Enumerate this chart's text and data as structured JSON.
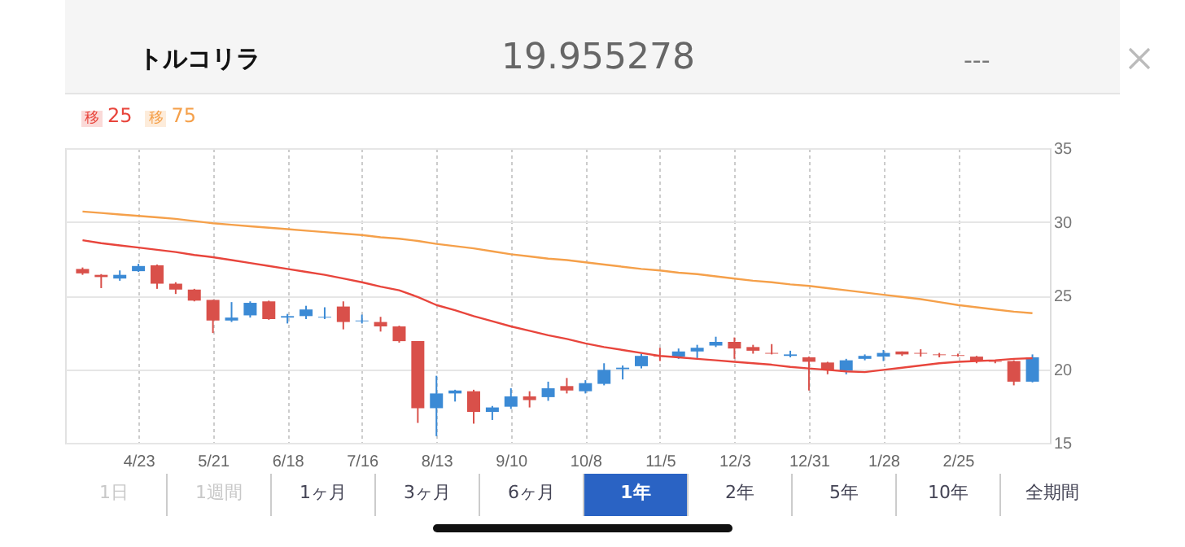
{
  "chart_data": {
    "type": "candlestick",
    "title": "トルコリラ",
    "subtitle": "19.955278",
    "annotations": [
      "---",
      "1日",
      "1週間",
      "1ヶ月",
      "3ヶ月",
      "6ヶ月",
      "1年",
      "2年",
      "5年",
      "10年",
      "全期間"
    ],
    "categories": [
      null,
      null,
      null,
      "4/23",
      null,
      null,
      null,
      "5/21",
      null,
      null,
      null,
      "6/18",
      null,
      null,
      null,
      "7/16",
      null,
      null,
      null,
      "8/13",
      null,
      null,
      null,
      "9/10",
      null,
      null,
      null,
      "10/8",
      null,
      null,
      null,
      "11/5",
      null,
      null,
      null,
      "12/3",
      null,
      null,
      null,
      "12/31",
      null,
      null,
      null,
      "1/28",
      null,
      null,
      null,
      "2/25",
      null,
      null,
      null,
      null
    ],
    "ylim": [
      15,
      35
    ],
    "yticks": [
      15,
      20,
      25,
      30,
      35
    ],
    "grid": true,
    "legend": "top left",
    "series": [
      {
        "ohlc": [
          [
            26.8,
            26.9,
            26.4,
            26.5
          ],
          [
            26.4,
            26.45,
            25.5,
            26.25
          ],
          [
            26.15,
            26.7,
            26.0,
            26.4
          ],
          [
            26.65,
            27.15,
            26.6,
            27.0
          ],
          [
            27.05,
            27.1,
            25.45,
            25.8
          ],
          [
            25.8,
            25.9,
            25.1,
            25.4
          ],
          [
            25.4,
            25.45,
            24.6,
            24.65
          ],
          [
            24.7,
            24.7,
            22.45,
            23.3
          ],
          [
            23.3,
            24.55,
            23.2,
            23.5
          ],
          [
            23.65,
            24.6,
            23.5,
            24.5
          ],
          [
            24.6,
            24.65,
            23.35,
            23.4
          ],
          [
            23.5,
            23.75,
            23.1,
            23.6
          ],
          [
            23.6,
            24.3,
            23.4,
            24.05
          ],
          [
            23.5,
            24.2,
            23.4,
            23.55
          ],
          [
            24.25,
            24.6,
            22.7,
            23.2
          ],
          [
            23.25,
            23.7,
            23.1,
            23.3
          ],
          [
            23.2,
            23.55,
            22.55,
            22.9
          ],
          [
            22.9,
            22.95,
            21.8,
            21.9
          ],
          [
            21.9,
            21.9,
            16.35,
            17.35
          ],
          [
            17.35,
            19.55,
            15.45,
            18.35
          ],
          [
            18.35,
            18.6,
            17.8,
            18.55
          ],
          [
            18.5,
            18.6,
            16.3,
            17.1
          ],
          [
            17.1,
            17.5,
            16.55,
            17.4
          ],
          [
            17.45,
            18.7,
            17.3,
            18.15
          ],
          [
            18.15,
            18.5,
            17.4,
            17.9
          ],
          [
            18.1,
            19.15,
            17.85,
            18.7
          ],
          [
            18.85,
            19.4,
            18.35,
            18.55
          ],
          [
            18.5,
            19.25,
            18.35,
            19.05
          ],
          [
            19.0,
            20.4,
            18.9,
            19.95
          ],
          [
            20.0,
            20.25,
            19.3,
            20.1
          ],
          [
            20.2,
            21.05,
            20.05,
            20.9
          ],
          [
            20.9,
            21.45,
            20.55,
            20.85
          ],
          [
            20.85,
            21.4,
            20.7,
            21.2
          ],
          [
            21.2,
            21.65,
            20.75,
            21.45
          ],
          [
            21.6,
            22.2,
            21.5,
            21.85
          ],
          [
            21.85,
            22.15,
            20.7,
            21.4
          ],
          [
            21.5,
            21.65,
            21.05,
            21.25
          ],
          [
            21.1,
            21.7,
            21.0,
            21.05
          ],
          [
            20.9,
            21.25,
            20.8,
            21.0
          ],
          [
            20.8,
            20.85,
            18.55,
            20.5
          ],
          [
            20.45,
            20.5,
            19.65,
            19.95
          ],
          [
            19.9,
            20.7,
            19.65,
            20.6
          ],
          [
            20.7,
            21.0,
            20.6,
            20.9
          ],
          [
            20.85,
            21.3,
            20.55,
            21.1
          ],
          [
            21.2,
            21.2,
            20.9,
            21.0
          ],
          [
            21.1,
            21.35,
            20.85,
            21.05
          ],
          [
            21.0,
            21.1,
            20.8,
            20.95
          ],
          [
            20.95,
            21.05,
            20.85,
            20.9
          ],
          [
            20.85,
            20.9,
            20.4,
            20.55
          ],
          [
            20.55,
            20.6,
            20.4,
            20.5
          ],
          [
            20.55,
            20.6,
            18.9,
            19.15
          ],
          [
            19.15,
            21.0,
            19.1,
            20.8
          ]
        ]
      },
      {
        "type": "line",
        "name": "移 25",
        "color": "#e8453c",
        "values": [
          28.75,
          28.55,
          28.4,
          28.25,
          28.1,
          27.95,
          27.75,
          27.6,
          27.4,
          27.2,
          27.0,
          26.8,
          26.6,
          26.4,
          26.15,
          25.9,
          25.6,
          25.35,
          24.9,
          24.35,
          24.0,
          23.6,
          23.25,
          22.9,
          22.6,
          22.3,
          22.05,
          21.75,
          21.5,
          21.3,
          21.1,
          20.9,
          20.8,
          20.7,
          20.6,
          20.5,
          20.4,
          20.3,
          20.15,
          20.05,
          19.95,
          19.85,
          19.8,
          19.95,
          20.1,
          20.25,
          20.4,
          20.5,
          20.55,
          20.6,
          20.7,
          20.75
        ]
      },
      {
        "type": "line",
        "name": "移 75",
        "color": "#f5a04a",
        "values": [
          30.7,
          30.6,
          30.5,
          30.4,
          30.3,
          30.2,
          30.05,
          29.9,
          29.8,
          29.7,
          29.6,
          29.5,
          29.4,
          29.3,
          29.2,
          29.1,
          28.95,
          28.85,
          28.7,
          28.5,
          28.35,
          28.2,
          28.0,
          27.8,
          27.65,
          27.5,
          27.4,
          27.25,
          27.1,
          26.95,
          26.8,
          26.7,
          26.55,
          26.45,
          26.3,
          26.15,
          26.0,
          25.9,
          25.75,
          25.65,
          25.5,
          25.35,
          25.2,
          25.05,
          24.9,
          24.75,
          24.55,
          24.35,
          24.2,
          24.05,
          23.9,
          23.8
        ]
      }
    ]
  }
}
